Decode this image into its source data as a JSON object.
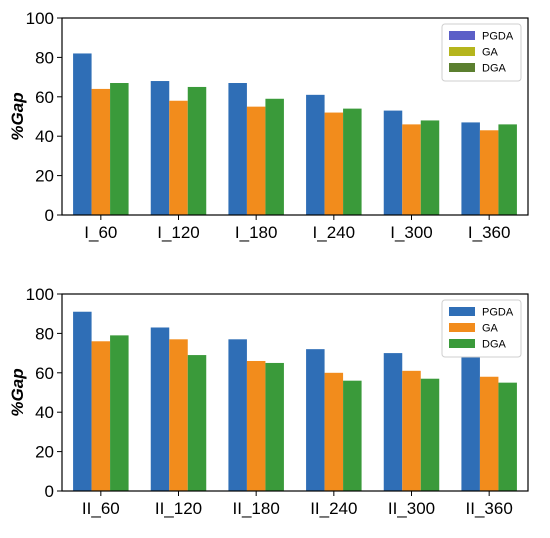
{
  "chart_data": [
    {
      "type": "bar",
      "title": "",
      "xlabel": "",
      "ylabel": "%Gap",
      "ylim": [
        0,
        100
      ],
      "yticks": [
        0,
        20,
        40,
        60,
        80,
        100
      ],
      "grid": false,
      "legend_position": "top-right",
      "categories": [
        "I_60",
        "I_120",
        "I_180",
        "I_240",
        "I_300",
        "I_360"
      ],
      "series": [
        {
          "name": "PGDA",
          "color": "#2f6eb6",
          "legend_color": "#5b5fc7",
          "values": [
            82,
            68,
            67,
            61,
            53,
            47
          ]
        },
        {
          "name": "GA",
          "color": "#f28c1c",
          "legend_color": "#b5b51d",
          "values": [
            64,
            58,
            55,
            52,
            46,
            43
          ]
        },
        {
          "name": "DGA",
          "color": "#3a9a3a",
          "legend_color": "#5b7f2f",
          "values": [
            67,
            65,
            59,
            54,
            48,
            46
          ]
        }
      ]
    },
    {
      "type": "bar",
      "title": "",
      "xlabel": "",
      "ylabel": "%Gap",
      "ylim": [
        0,
        100
      ],
      "yticks": [
        0,
        20,
        40,
        60,
        80,
        100
      ],
      "grid": false,
      "legend_position": "top-right",
      "categories": [
        "II_60",
        "II_120",
        "II_180",
        "II_240",
        "II_300",
        "II_360"
      ],
      "series": [
        {
          "name": "PGDA",
          "color": "#2f6eb6",
          "legend_color": "#2f6eb6",
          "values": [
            91,
            83,
            77,
            72,
            70,
            68
          ]
        },
        {
          "name": "GA",
          "color": "#f28c1c",
          "legend_color": "#f28c1c",
          "values": [
            76,
            77,
            66,
            60,
            61,
            58
          ]
        },
        {
          "name": "DGA",
          "color": "#3a9a3a",
          "legend_color": "#3a9a3a",
          "values": [
            79,
            69,
            65,
            56,
            57,
            55
          ]
        }
      ]
    }
  ]
}
